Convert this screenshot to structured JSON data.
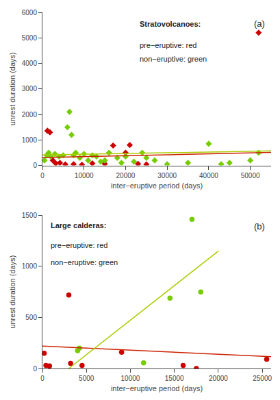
{
  "chart_data": [
    {
      "type": "scatter",
      "title": "(a)",
      "xlabel": "inter−eruptive period (days)",
      "ylabel": "unrest duration (days)",
      "xlim": [
        0,
        55000
      ],
      "ylim": [
        0,
        6000
      ],
      "xticks": [
        0,
        10000,
        20000,
        30000,
        40000,
        50000
      ],
      "yticks": [
        0,
        1000,
        2000,
        3000,
        4000,
        5000,
        6000
      ],
      "grid": false,
      "annotations": [
        "Stratovolcanoes:",
        "pre−eruptive: red",
        "non−eruptive: green"
      ],
      "series": [
        {
          "type": "scatter",
          "marker": "diamond",
          "color": "#cc0000",
          "x": [
            1200,
            1800,
            2500,
            3200,
            4200,
            5500,
            7500,
            9500,
            12000,
            15000,
            17000,
            20000,
            21000,
            23000,
            25000,
            52000
          ],
          "values": [
            1360,
            1300,
            200,
            80,
            100,
            40,
            50,
            30,
            80,
            60,
            780,
            500,
            800,
            60,
            40,
            5200
          ]
        },
        {
          "type": "scatter",
          "marker": "diamond",
          "color": "#77cc00",
          "x": [
            500,
            1000,
            1500,
            2000,
            3000,
            4000,
            5000,
            6000,
            6500,
            7000,
            7500,
            8000,
            9000,
            10000,
            11000,
            12000,
            13000,
            14000,
            15000,
            16000,
            18000,
            19000,
            20000,
            22000,
            24000,
            25000,
            27000,
            30000,
            35000,
            40000,
            43000,
            45000,
            50000,
            52000
          ],
          "values": [
            200,
            400,
            500,
            350,
            450,
            350,
            400,
            1500,
            2100,
            1200,
            400,
            500,
            300,
            450,
            200,
            400,
            350,
            150,
            200,
            500,
            300,
            100,
            350,
            150,
            500,
            300,
            200,
            50,
            100,
            850,
            50,
            100,
            200,
            500
          ]
        },
        {
          "type": "line",
          "line_style": "solid",
          "color": "#cc2200",
          "x": [
            0,
            55000
          ],
          "values": [
            310,
            510
          ]
        },
        {
          "type": "line",
          "line_style": "solid",
          "color": "#aacc00",
          "x": [
            0,
            55000
          ],
          "values": [
            410,
            570
          ]
        }
      ]
    },
    {
      "type": "scatter",
      "title": "(b)",
      "xlabel": "inter−eruptive period (days)",
      "ylabel": "unrest duration (days)",
      "xlim": [
        0,
        26000
      ],
      "ylim": [
        0,
        1500
      ],
      "xticks": [
        0,
        5000,
        10000,
        15000,
        20000,
        25000
      ],
      "yticks": [
        0,
        500,
        1000,
        1500
      ],
      "grid": false,
      "annotations": [
        "Large calderas:",
        "pre−eruptive: red",
        "non−eruptive: green"
      ],
      "series": [
        {
          "type": "scatter",
          "marker": "circle",
          "color": "#cc0000",
          "x": [
            200,
            400,
            800,
            3000,
            3200,
            4500,
            9000,
            16000,
            17500,
            25500
          ],
          "values": [
            150,
            30,
            25,
            720,
            50,
            30,
            160,
            30,
            0,
            90
          ]
        },
        {
          "type": "scatter",
          "marker": "circle",
          "color": "#77cc00",
          "x": [
            4000,
            4200,
            11500,
            14500,
            17000,
            18000
          ],
          "values": [
            175,
            200,
            55,
            690,
            1460,
            750
          ]
        },
        {
          "type": "line",
          "line_style": "solid",
          "color": "#cc2200",
          "x": [
            0,
            26000
          ],
          "values": [
            220,
            115
          ]
        },
        {
          "type": "line",
          "line_style": "solid",
          "color": "#aacc00",
          "x": [
            3000,
            20000
          ],
          "values": [
            0,
            1150
          ]
        }
      ]
    }
  ]
}
